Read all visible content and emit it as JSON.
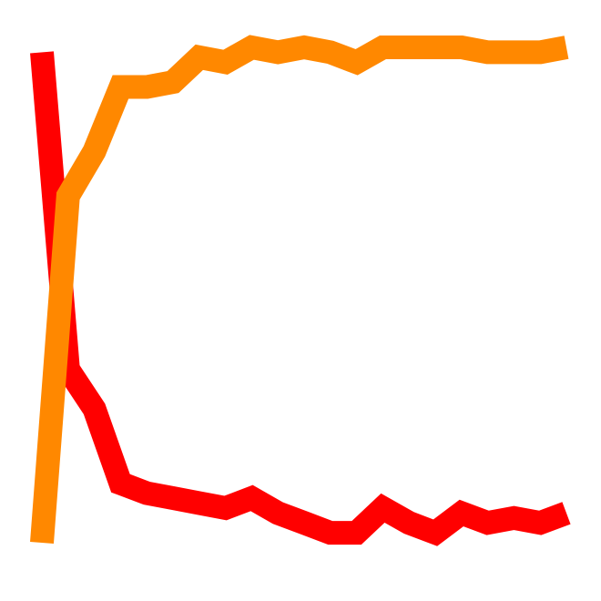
{
  "chart_data": {
    "type": "line",
    "title": "",
    "xlabel": "",
    "ylabel": "",
    "grid": false,
    "legend": "none",
    "x": [
      0,
      1,
      2,
      3,
      4,
      5,
      6,
      7,
      8,
      9,
      10,
      11,
      12,
      13,
      14,
      15,
      16,
      17,
      18,
      19,
      20
    ],
    "ylim": [
      0,
      1
    ],
    "series": [
      {
        "color": "#ff0000",
        "values": [
          0.99,
          0.35,
          0.27,
          0.12,
          0.1,
          0.09,
          0.08,
          0.07,
          0.09,
          0.06,
          0.04,
          0.02,
          0.02,
          0.07,
          0.04,
          0.02,
          0.06,
          0.04,
          0.05,
          0.04,
          0.06
        ]
      },
      {
        "color": "#ff8800",
        "values": [
          0.0,
          0.7,
          0.79,
          0.92,
          0.92,
          0.93,
          0.98,
          0.97,
          1.0,
          0.99,
          1.0,
          0.99,
          0.97,
          1.0,
          1.0,
          1.0,
          1.0,
          0.99,
          0.99,
          0.99,
          1.0
        ]
      }
    ]
  }
}
